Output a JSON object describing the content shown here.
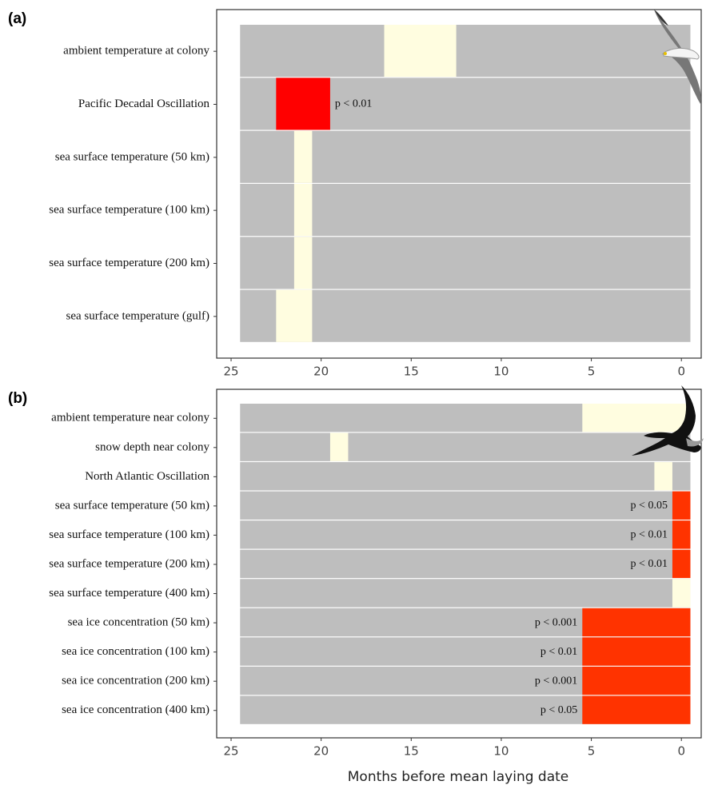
{
  "chart_data": [
    {
      "type": "window",
      "panel": "(a)",
      "categories": [
        "ambient temperature at colony",
        "Pacific Decadal Oscillation",
        "sea surface temperature (50 km)",
        "sea surface temperature (100 km)",
        "sea surface temperature (200 km)",
        "sea surface temperature (gulf)"
      ],
      "range": [
        24.5,
        -0.5
      ],
      "background_color": "#bebebe",
      "windows": [
        [
          {
            "start": 16.5,
            "end": 12.5,
            "color": "#fffde0"
          }
        ],
        [
          {
            "start": 22.5,
            "end": 19.5,
            "color": "#ff0000",
            "label": "p < 0.01"
          }
        ],
        [
          {
            "start": 21.5,
            "end": 20.5,
            "color": "#fffde0"
          }
        ],
        [
          {
            "start": 21.5,
            "end": 20.5,
            "color": "#fffde0"
          }
        ],
        [
          {
            "start": 21.5,
            "end": 20.5,
            "color": "#fffde0"
          }
        ],
        [
          {
            "start": 22.5,
            "end": 20.5,
            "color": "#fffde0"
          }
        ]
      ],
      "xlim": [
        25.8,
        -1.1
      ],
      "xticks": [
        25,
        20,
        15,
        10,
        5,
        0
      ]
    },
    {
      "type": "window",
      "panel": "(b)",
      "categories": [
        "ambient temperature near colony",
        "snow depth near colony",
        "North Atlantic Oscillation",
        "sea surface temperature (50 km)",
        "sea surface temperature (100 km)",
        "sea surface temperature (200 km)",
        "sea surface temperature (400 km)",
        "sea ice concentration (50 km)",
        "sea ice concentration (100 km)",
        "sea ice concentration (200 km)",
        "sea ice concentration (400 km)"
      ],
      "range": [
        24.5,
        -0.5
      ],
      "background_color": "#bebebe",
      "windows": [
        [
          {
            "start": 5.5,
            "end": -0.5,
            "color": "#fffde0"
          }
        ],
        [
          {
            "start": 19.5,
            "end": 18.5,
            "color": "#fffde0"
          }
        ],
        [
          {
            "start": 1.5,
            "end": 0.5,
            "color": "#fffde0"
          }
        ],
        [
          {
            "start": 0.5,
            "end": -0.5,
            "color": "#ff3300",
            "label": "p < 0.05"
          }
        ],
        [
          {
            "start": 0.5,
            "end": -0.5,
            "color": "#ff3300",
            "label": "p < 0.01"
          }
        ],
        [
          {
            "start": 0.5,
            "end": -0.5,
            "color": "#ff3300",
            "label": "p < 0.01"
          }
        ],
        [
          {
            "start": 0.5,
            "end": -0.5,
            "color": "#fffde0"
          }
        ],
        [
          {
            "start": 5.5,
            "end": -0.5,
            "color": "#ff3300",
            "label": "p < 0.001"
          }
        ],
        [
          {
            "start": 5.5,
            "end": -0.5,
            "color": "#ff3300",
            "label": "p < 0.01"
          }
        ],
        [
          {
            "start": 5.5,
            "end": -0.5,
            "color": "#ff3300",
            "label": "p < 0.001"
          }
        ],
        [
          {
            "start": 5.5,
            "end": -0.5,
            "color": "#ff3300",
            "label": "p < 0.05"
          }
        ]
      ],
      "xlim": [
        25.8,
        -1.1
      ],
      "xticks": [
        25,
        20,
        15,
        10,
        5,
        0
      ],
      "x_label": "Months before mean laying date"
    }
  ]
}
